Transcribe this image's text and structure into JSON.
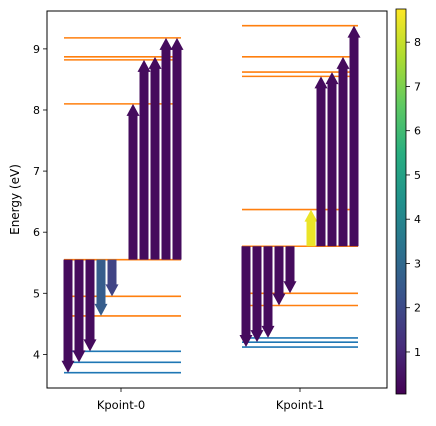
{
  "chart_data": {
    "type": "transition-diagram",
    "ylabel": "Energy (eV)",
    "ylim": [
      3.45,
      9.62
    ],
    "yticks": [
      4,
      5,
      6,
      7,
      8,
      9
    ],
    "categories": [
      "Kpoint-0",
      "Kpoint-1"
    ],
    "colorbar": {
      "colormap": "viridis",
      "range": [
        0.05,
        8.75
      ],
      "ticks": [
        1,
        2,
        3,
        4,
        5,
        6,
        7,
        8
      ]
    },
    "level_colors": {
      "occupied": "#1f77b4",
      "unoccupied": "#ff7f0e"
    },
    "kpoints": [
      {
        "name": "Kpoint-0",
        "occupied_levels": [
          3.7,
          3.87,
          4.05
        ],
        "unoccupied_levels": [
          5.55,
          4.95,
          4.63,
          8.1,
          8.82,
          8.87,
          9.18
        ],
        "transitions": [
          {
            "from": 5.55,
            "to": 3.7,
            "weight": 0.3
          },
          {
            "from": 5.55,
            "to": 3.87,
            "weight": 0.3
          },
          {
            "from": 5.55,
            "to": 4.05,
            "weight": 0.3
          },
          {
            "from": 5.55,
            "to": 4.63,
            "weight": 2.6
          },
          {
            "from": 5.55,
            "to": 4.95,
            "weight": 1.8
          },
          {
            "from": 5.55,
            "to": 8.1,
            "weight": 0.3
          },
          {
            "from": 5.55,
            "to": 8.82,
            "weight": 0.3
          },
          {
            "from": 5.55,
            "to": 8.87,
            "weight": 0.3
          },
          {
            "from": 5.55,
            "to": 9.18,
            "weight": 0.3
          },
          {
            "from": 5.55,
            "to": 9.18,
            "weight": 0.3
          }
        ]
      },
      {
        "name": "Kpoint-1",
        "occupied_levels": [
          4.12,
          4.2,
          4.27
        ],
        "unoccupied_levels": [
          5.77,
          5.0,
          4.8,
          6.37,
          8.55,
          8.62,
          8.87,
          9.38
        ],
        "transitions": [
          {
            "from": 5.77,
            "to": 4.12,
            "weight": 0.3
          },
          {
            "from": 5.77,
            "to": 4.2,
            "weight": 0.3
          },
          {
            "from": 5.77,
            "to": 4.27,
            "weight": 0.3
          },
          {
            "from": 5.77,
            "to": 4.8,
            "weight": 0.3
          },
          {
            "from": 5.77,
            "to": 5.0,
            "weight": 0.3
          },
          {
            "from": 5.77,
            "to": 6.37,
            "weight": 8.5
          },
          {
            "from": 5.77,
            "to": 8.55,
            "weight": 0.3
          },
          {
            "from": 5.77,
            "to": 8.62,
            "weight": 0.3
          },
          {
            "from": 5.77,
            "to": 8.87,
            "weight": 0.3
          },
          {
            "from": 5.77,
            "to": 9.38,
            "weight": 0.3
          }
        ]
      }
    ]
  }
}
